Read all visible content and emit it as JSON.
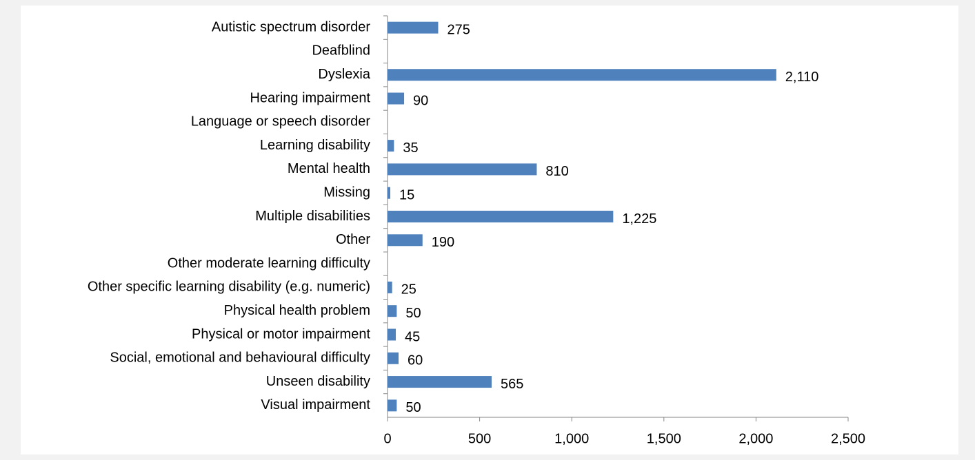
{
  "chart_data": {
    "type": "barh",
    "categories": [
      "Autistic spectrum disorder",
      "Deafblind",
      "Dyslexia",
      "Hearing impairment",
      "Language or speech disorder",
      "Learning disability",
      "Mental health",
      "Missing",
      "Multiple disabilities",
      "Other",
      "Other moderate learning difficulty",
      "Other specific learning disability (e.g. numeric)",
      "Physical health problem",
      "Physical or motor impairment",
      "Social, emotional and behavioural difficulty",
      "Unseen disability",
      "Visual impairment"
    ],
    "values": [
      275,
      null,
      2110,
      90,
      null,
      35,
      810,
      15,
      1225,
      190,
      null,
      25,
      50,
      45,
      60,
      565,
      50
    ],
    "value_labels": [
      "275",
      null,
      "2,110",
      "90",
      null,
      "35",
      "810",
      "15",
      "1,225",
      "190",
      null,
      "25",
      "50",
      "45",
      "60",
      "565",
      "50"
    ],
    "color": "#4f81bd",
    "xlim": [
      0,
      2500
    ],
    "xticks": [
      0,
      500,
      {
        "value": 1000,
        "label": "1,000"
      },
      {
        "value": 1500,
        "label": "1,500"
      },
      {
        "value": 2000,
        "label": "2,000"
      },
      {
        "value": 2500,
        "label": "2,500"
      }
    ],
    "grid": false
  }
}
